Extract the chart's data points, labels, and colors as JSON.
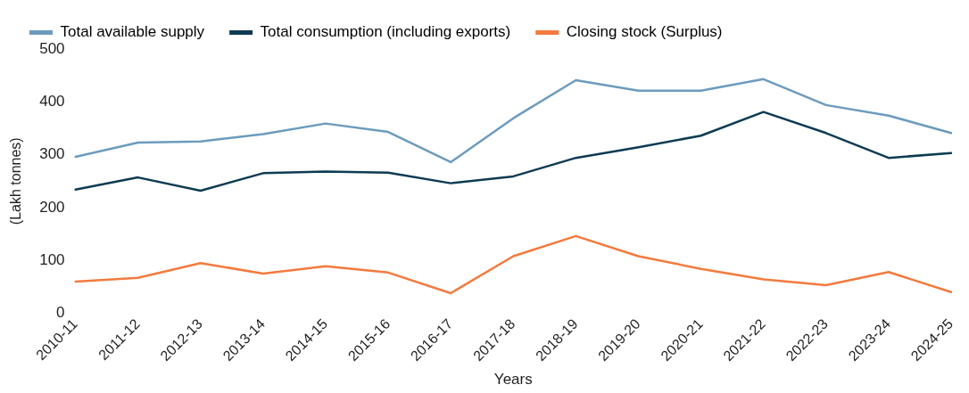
{
  "chart_data": {
    "type": "line",
    "xlabel": "Years",
    "ylabel": "(Lakh tonnes)",
    "categories": [
      "2010-11",
      "2011-12",
      "2012-13",
      "2013-14",
      "2014-15",
      "2015-16",
      "2016-17",
      "2017-18",
      "2018-19",
      "2019-20",
      "2020-21",
      "2021-22",
      "2022-23",
      "2023-24",
      "2024-25"
    ],
    "series": [
      {
        "name": "Total available supply",
        "color": "#6c9bbd",
        "values": [
          296,
          323,
          325,
          339,
          359,
          343,
          286,
          369,
          441,
          421,
          421,
          443,
          394,
          374,
          341
        ]
      },
      {
        "name": "Total consumption (including exports)",
        "color": "#0d3b53",
        "values": [
          234,
          257,
          232,
          265,
          268,
          266,
          246,
          259,
          294,
          314,
          336,
          381,
          341,
          294,
          303
        ]
      },
      {
        "name": "Closing stock (Surplus)",
        "color": "#f47a3e",
        "values": [
          60,
          67,
          95,
          75,
          89,
          77,
          38,
          108,
          146,
          108,
          84,
          64,
          53,
          78,
          40
        ]
      }
    ],
    "ylim": [
      0,
      500
    ],
    "yticks": [
      0,
      100,
      200,
      300,
      400,
      500
    ],
    "grid": false,
    "legend": "top",
    "marker": "none",
    "line_style": "solid"
  }
}
